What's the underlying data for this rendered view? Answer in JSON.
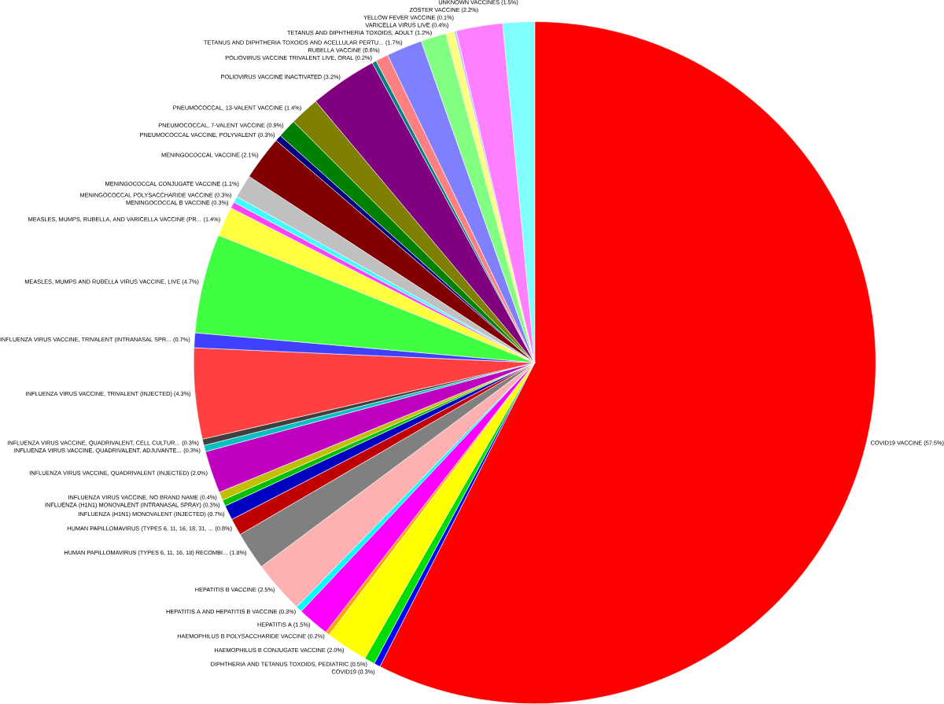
{
  "chart_data": {
    "type": "pie",
    "categories": [
      "COVID19 VACCINE",
      "COVID19",
      "DIPHTHERIA AND TETANUS TOXOIDS, PEDIATRIC",
      "HAEMOPHILUS B CONJUGATE VACCINE",
      "HAEMOPHILUS B POLYSACCHARIDE VACCINE",
      "HEPATITIS A",
      "HEPATITIS A AND HEPATITIS B VACCINE",
      "HEPATITIS B VACCINE",
      "HUMAN PAPILLOMAVIRUS (TYPES 6, 11, 16, 18) RECOMBI...",
      "HUMAN PAPILLOMAVIRUS (TYPES 6, 11, 16, 18, 31, ...",
      "INFLUENZA (H1N1) MONOVALENT (INJECTED)",
      "INFLUENZA (H1N1) MONOVALENT (INTRANASAL SPRAY)",
      "INFLUENZA VIRUS VACCINE, NO BRAND NAME",
      "INFLUENZA VIRUS VACCINE, QUADRIVALENT (INJECTED)",
      "INFLUENZA VIRUS VACCINE, QUADRIVALENT, ADJUVANTE...",
      "INFLUENZA VIRUS VACCINE, QUADRIVALENT, CELL CULTUR...",
      "INFLUENZA VIRUS VACCINE, TRIVALENT (INJECTED)",
      "INFLUENZA VIRUS VACCINE, TRIVALENT (INTRANASAL SPR...",
      "MEASLES, MUMPS AND RUBELLA VIRUS VACCINE, LIVE",
      "MEASLES, MUMPS, RUBELLA, AND VARICELLA VACCINE (PR...",
      "MENINGOCOCCAL B VACCINE",
      "MENINGOCOCCAL POLYSACCHARIDE VACCINE",
      "MENINGOCOCCAL CONJUGATE VACCINE",
      "MENINGOCOCCAL VACCINE",
      "PNEUMOCOCCAL VACCINE, POLYVALENT",
      "PNEUMOCOCCAL, 7-VALENT VACCINE",
      "PNEUMOCOCCAL, 13-VALENT VACCINE",
      "POLIOVIRUS VACCINE INACTIVATED",
      "POLIOVIRUS VACCINE TRIVALENT LIVE, ORAL",
      "RUBELLA VACCINE",
      "TETANUS AND DIPHTHERIA TOXOIDS AND ACELLULAR PERTU...",
      "TETANUS AND DIPHTHERIA TOXOIDS, ADULT",
      "VARICELLA VIRUS LIVE",
      "YELLOW FEVER VACCINE",
      "ZOSTER VACCINE",
      "UNKNOWN VACCINES"
    ],
    "values": [
      57.5,
      0.3,
      0.5,
      2.0,
      0.2,
      1.5,
      0.3,
      2.5,
      1.8,
      0.8,
      0.7,
      0.3,
      0.4,
      2.0,
      0.3,
      0.3,
      4.3,
      0.7,
      4.7,
      1.4,
      0.3,
      0.3,
      1.1,
      2.1,
      0.3,
      0.9,
      1.4,
      3.2,
      0.2,
      0.6,
      1.7,
      1.2,
      0.4,
      0.1,
      2.2,
      1.5
    ],
    "value_labels": [
      "(57.5%)",
      "(0.3%)",
      "(0.5%)",
      "(2.0%)",
      "(0.2%)",
      "(1.5%)",
      "(0.3%)",
      "(2.5%)",
      "(1.8%)",
      "(0.8%)",
      "(0.7%)",
      "(0.3%)",
      "(0.4%)",
      "(2.0%)",
      "(0.3%)",
      "(0.3%)",
      "(4.3%)",
      "(0.7%)",
      "(4.7%)",
      "(1.4%)",
      "(0.3%)",
      "(0.3%)",
      "(1.1%)",
      "(2.1%)",
      "(0.3%)",
      "(0.9%)",
      "(1.4%)",
      "(3.2%)",
      "(0.2%)",
      "(0.6%)",
      "(1.7%)",
      "(1.2%)",
      "(0.4%)",
      "(0.1%)",
      "(2.2%)",
      "(1.5%)"
    ],
    "colors": [
      "#ff0000",
      "#0000ff",
      "#00dd00",
      "#ffff00",
      "#ffa500",
      "#ff00ff",
      "#00ffff",
      "#ffb0b0",
      "#808080",
      "#c00000",
      "#0000c0",
      "#00c000",
      "#c0c000",
      "#c000c0",
      "#00c0c0",
      "#404040",
      "#ff4040",
      "#4040ff",
      "#40ff40",
      "#ffff40",
      "#ff40ff",
      "#40ffff",
      "#c0c0c0",
      "#800000",
      "#000080",
      "#008000",
      "#808000",
      "#800080",
      "#008080",
      "#ff8080",
      "#8080ff",
      "#80ff80",
      "#ffff80",
      "#c0c0ff",
      "#ff80ff",
      "#80ffff"
    ]
  }
}
